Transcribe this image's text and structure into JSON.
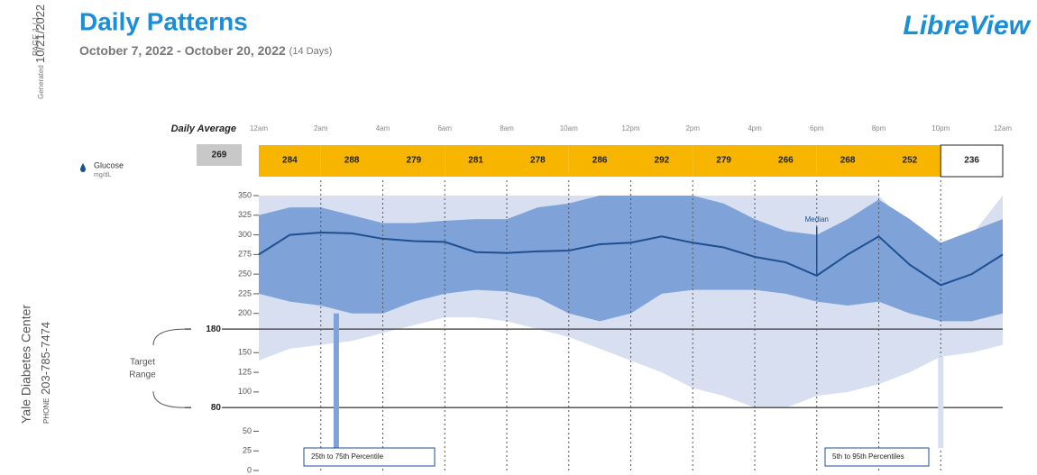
{
  "header": {
    "title": "Daily Patterns",
    "date_range": "October 7, 2022 - October 20, 2022",
    "days": "(14 Days)",
    "brand": "LibreView",
    "page": "PAGE 1 / 1",
    "generated_label": "Generated",
    "generated_date": "10/21/2022",
    "clinic": "Yale Diabetes Center",
    "phone_label": "PHONE",
    "phone": "203-785-7474"
  },
  "chart_data": {
    "type": "agp",
    "glucose_label": "Glucose",
    "unit": "mg/dL",
    "averages": {
      "label": "Daily Average",
      "overall": 269,
      "overall_color": "#c8c8c8",
      "values": [
        284,
        288,
        279,
        281,
        278,
        286,
        292,
        279,
        266,
        268,
        252,
        236
      ],
      "colors": [
        "#f7b500",
        "#f7b500",
        "#f7b500",
        "#f7b500",
        "#f7b500",
        "#f7b500",
        "#f7b500",
        "#f7b500",
        "#f7b500",
        "#f7b500",
        "#f7b500",
        "#ffffff"
      ]
    },
    "xlim": [
      0,
      24
    ],
    "xticks": [
      {
        "value": 0,
        "label": "12am"
      },
      {
        "value": 2,
        "label": "2am"
      },
      {
        "value": 4,
        "label": "4am"
      },
      {
        "value": 6,
        "label": "6am"
      },
      {
        "value": 8,
        "label": "8am"
      },
      {
        "value": 10,
        "label": "10am"
      },
      {
        "value": 12,
        "label": "12pm"
      },
      {
        "value": 14,
        "label": "2pm"
      },
      {
        "value": 16,
        "label": "4pm"
      },
      {
        "value": 18,
        "label": "6pm"
      },
      {
        "value": 20,
        "label": "8pm"
      },
      {
        "value": 22,
        "label": "10pm"
      },
      {
        "value": 24,
        "label": "12am"
      }
    ],
    "ylim": [
      0,
      350
    ],
    "yticks": [
      350,
      325,
      300,
      275,
      250,
      225,
      200,
      180,
      150,
      125,
      100,
      80,
      50,
      25,
      0
    ],
    "target_range": [
      80,
      180
    ],
    "target_range_label": [
      "Target",
      "Range"
    ],
    "x": [
      0,
      1,
      2,
      3,
      4,
      5,
      6,
      7,
      8,
      9,
      10,
      11,
      12,
      13,
      14,
      15,
      16,
      17,
      18,
      19,
      20,
      21,
      22,
      23,
      24
    ],
    "bands": [
      {
        "name": "5th to 95th Percentiles",
        "color": "#d7dff0",
        "upper": [
          350,
          350,
          350,
          350,
          350,
          350,
          350,
          350,
          350,
          350,
          350,
          350,
          350,
          350,
          350,
          350,
          350,
          350,
          350,
          350,
          350,
          310,
          280,
          300,
          350
        ],
        "lower": [
          140,
          155,
          160,
          165,
          175,
          185,
          195,
          195,
          190,
          180,
          170,
          155,
          140,
          125,
          105,
          95,
          80,
          80,
          95,
          100,
          110,
          125,
          145,
          150,
          160
        ]
      },
      {
        "name": "25th to 75th Percentile",
        "color": "#7fa3d8",
        "upper": [
          325,
          335,
          335,
          325,
          315,
          315,
          318,
          320,
          320,
          335,
          340,
          350,
          350,
          350,
          350,
          340,
          320,
          305,
          300,
          320,
          345,
          320,
          290,
          305,
          320
        ],
        "lower": [
          225,
          215,
          210,
          200,
          200,
          215,
          225,
          230,
          228,
          220,
          200,
          190,
          200,
          225,
          230,
          230,
          230,
          225,
          215,
          210,
          215,
          200,
          190,
          190,
          200
        ]
      }
    ],
    "median": {
      "name": "Median",
      "color": "#1e4f91",
      "values": [
        275,
        300,
        303,
        302,
        295,
        292,
        291,
        278,
        277,
        279,
        280,
        288,
        290,
        298,
        290,
        284,
        272,
        265,
        248,
        275,
        298,
        262,
        236,
        250,
        275
      ]
    }
  }
}
